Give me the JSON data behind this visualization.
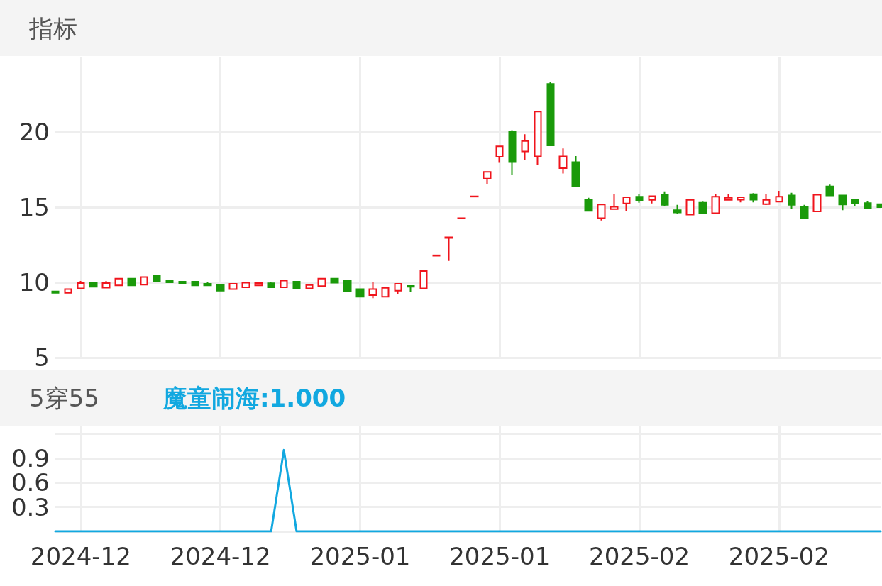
{
  "chart_data": [
    {
      "type": "candlestick",
      "title": "指标",
      "categories": [
        null,
        null,
        "2024-12",
        null,
        null,
        null,
        null,
        null,
        null,
        null,
        null,
        null,
        null,
        "2024-12",
        null,
        null,
        null,
        null,
        null,
        null,
        null,
        null,
        null,
        null,
        "2025-01",
        null,
        null,
        null,
        null,
        null,
        null,
        null,
        null,
        null,
        null,
        "2025-01",
        null,
        null,
        null,
        null,
        null,
        null,
        null,
        null,
        null,
        null,
        "2025-02",
        null,
        null,
        null,
        null,
        null,
        null,
        null,
        null,
        null,
        null,
        "2025-02",
        null,
        null,
        null,
        null,
        null,
        null,
        null,
        null
      ],
      "ohlc": [
        [
          9.4,
          9.45,
          9.3,
          9.3
        ],
        [
          9.3,
          9.55,
          9.3,
          9.55
        ],
        [
          9.6,
          10.1,
          9.6,
          9.95
        ],
        [
          9.95,
          9.97,
          9.7,
          9.7
        ],
        [
          9.65,
          10.1,
          9.65,
          9.95
        ],
        [
          9.8,
          10.3,
          9.75,
          10.25
        ],
        [
          10.25,
          10.3,
          9.75,
          9.8
        ],
        [
          9.85,
          10.4,
          9.85,
          10.35
        ],
        [
          10.45,
          10.45,
          10.05,
          10.05
        ],
        [
          10.1,
          10.12,
          9.95,
          10.0
        ],
        [
          10.05,
          10.05,
          9.92,
          9.95
        ],
        [
          10.05,
          10.05,
          9.8,
          9.8
        ],
        [
          9.9,
          10.0,
          9.78,
          9.8
        ],
        [
          9.85,
          9.85,
          9.42,
          9.45
        ],
        [
          9.55,
          9.9,
          9.5,
          9.9
        ],
        [
          9.67,
          10.02,
          9.67,
          9.98
        ],
        [
          9.8,
          10.0,
          9.78,
          9.95
        ],
        [
          9.94,
          10.03,
          9.67,
          9.67
        ],
        [
          9.67,
          10.12,
          9.65,
          10.12
        ],
        [
          10.05,
          10.05,
          9.6,
          9.6
        ],
        [
          9.6,
          9.9,
          9.6,
          9.82
        ],
        [
          9.75,
          10.3,
          9.72,
          10.25
        ],
        [
          10.25,
          10.27,
          9.97,
          9.98
        ],
        [
          10.1,
          10.12,
          9.4,
          9.4
        ],
        [
          9.55,
          9.56,
          9.0,
          9.05
        ],
        [
          9.15,
          10.05,
          8.95,
          9.55
        ],
        [
          9.05,
          9.68,
          9.05,
          9.64
        ],
        [
          9.45,
          9.9,
          9.22,
          9.9
        ],
        [
          9.77,
          9.78,
          9.37,
          9.7
        ],
        [
          9.6,
          10.77,
          9.6,
          10.75
        ],
        [
          11.77,
          11.8,
          11.77,
          11.8
        ],
        [
          12.95,
          12.99,
          11.43,
          12.99
        ],
        [
          14.25,
          14.27,
          14.25,
          14.27
        ],
        [
          15.7,
          15.72,
          15.7,
          15.72
        ],
        [
          16.9,
          17.36,
          16.55,
          17.35
        ],
        [
          18.35,
          19.07,
          17.95,
          19.05
        ],
        [
          20.0,
          20.12,
          17.13,
          18.0
        ],
        [
          18.7,
          19.85,
          18.13,
          19.4
        ],
        [
          18.37,
          21.36,
          17.8,
          21.36
        ],
        [
          23.2,
          23.35,
          19.1,
          19.1
        ],
        [
          17.6,
          18.9,
          17.24,
          18.37
        ],
        [
          18.0,
          18.4,
          16.42,
          16.42
        ],
        [
          15.5,
          15.63,
          14.75,
          14.75
        ],
        [
          14.27,
          15.2,
          14.12,
          15.18
        ],
        [
          14.87,
          15.86,
          14.87,
          15.02
        ],
        [
          15.25,
          15.68,
          14.72,
          15.66
        ],
        [
          15.7,
          15.9,
          15.29,
          15.44
        ],
        [
          15.48,
          15.73,
          15.25,
          15.73
        ],
        [
          15.85,
          16.05,
          15.05,
          15.15
        ],
        [
          14.8,
          15.15,
          14.57,
          14.65
        ],
        [
          14.5,
          15.48,
          14.5,
          15.48
        ],
        [
          15.29,
          15.37,
          14.6,
          14.6
        ],
        [
          14.6,
          15.9,
          14.6,
          15.7
        ],
        [
          15.48,
          15.88,
          15.48,
          15.63
        ],
        [
          15.5,
          15.66,
          15.32,
          15.66
        ],
        [
          15.86,
          15.93,
          15.32,
          15.5
        ],
        [
          15.2,
          15.88,
          15.14,
          15.48
        ],
        [
          15.37,
          16.08,
          15.37,
          15.7
        ],
        [
          15.78,
          15.96,
          14.87,
          15.15
        ],
        [
          15.02,
          15.15,
          14.27,
          14.27
        ],
        [
          14.72,
          15.82,
          14.72,
          15.82
        ],
        [
          16.38,
          16.5,
          15.78,
          15.78
        ],
        [
          15.78,
          15.8,
          14.8,
          15.18
        ],
        [
          15.52,
          15.52,
          15.1,
          15.25
        ],
        [
          15.27,
          15.43,
          14.95,
          14.95
        ],
        [
          15.2,
          15.2,
          15.0,
          15.0
        ]
      ],
      "colors": [
        "#1a9a0a",
        "#f0141c",
        "#f0141c",
        "#1a9a0a",
        "#f0141c",
        "#f0141c",
        "#1a9a0a",
        "#f0141c",
        "#1a9a0a",
        "#1a9a0a",
        "#1a9a0a",
        "#1a9a0a",
        "#1a9a0a",
        "#1a9a0a",
        "#f0141c",
        "#f0141c",
        "#f0141c",
        "#1a9a0a",
        "#f0141c",
        "#1a9a0a",
        "#f0141c",
        "#f0141c",
        "#1a9a0a",
        "#1a9a0a",
        "#1a9a0a",
        "#f0141c",
        "#f0141c",
        "#f0141c",
        "#1a9a0a",
        "#f0141c",
        "#f0141c",
        "#f0141c",
        "#f0141c",
        "#f0141c",
        "#f0141c",
        "#f0141c",
        "#1a9a0a",
        "#f0141c",
        "#f0141c",
        "#1a9a0a",
        "#f0141c",
        "#1a9a0a",
        "#1a9a0a",
        "#f0141c",
        "#f0141c",
        "#f0141c",
        "#1a9a0a",
        "#f0141c",
        "#1a9a0a",
        "#1a9a0a",
        "#f0141c",
        "#1a9a0a",
        "#f0141c",
        "#f0141c",
        "#f0141c",
        "#1a9a0a",
        "#f0141c",
        "#f0141c",
        "#1a9a0a",
        "#1a9a0a",
        "#f0141c",
        "#1a9a0a",
        "#1a9a0a",
        "#1a9a0a",
        "#1a9a0a",
        "#1a9a0a"
      ],
      "ylim": [
        5,
        25
      ],
      "yticks": [
        5,
        10,
        15,
        20
      ],
      "grid": true,
      "tick_labels": "y"
    },
    {
      "type": "line",
      "title": "5穿55",
      "categories": [
        null,
        null,
        "2024-12",
        null,
        null,
        null,
        null,
        null,
        null,
        null,
        null,
        null,
        null,
        "2024-12",
        null,
        null,
        null,
        null,
        null,
        null,
        null,
        null,
        null,
        null,
        "2025-01",
        null,
        null,
        null,
        null,
        null,
        null,
        null,
        null,
        null,
        null,
        "2025-01",
        null,
        null,
        null,
        null,
        null,
        null,
        null,
        null,
        null,
        null,
        "2025-02",
        null,
        null,
        null,
        null,
        null,
        null,
        null,
        null,
        null,
        null,
        "2025-02",
        null,
        null,
        null,
        null,
        null,
        null,
        null,
        null
      ],
      "series": [
        {
          "name": "魔童闹海:1.000",
          "color": "#12a8e0",
          "values": [
            0,
            0,
            0,
            0,
            0,
            0,
            0,
            0,
            0,
            0,
            0,
            0,
            0,
            0,
            0,
            0,
            0,
            0,
            1,
            0,
            0,
            0,
            0,
            0,
            0,
            0,
            0,
            0,
            0,
            0,
            0,
            0,
            0,
            0,
            0,
            0,
            0,
            0,
            0,
            0,
            0,
            0,
            0,
            0,
            0,
            0,
            0,
            0,
            0,
            0,
            0,
            0,
            0,
            0,
            0,
            0,
            0,
            0,
            0,
            0,
            0,
            0,
            0,
            0,
            0,
            0
          ]
        }
      ],
      "ylim": [
        0,
        1.3
      ],
      "yticks": [
        {
          "value": 0,
          "label": null
        },
        0.3,
        0.6,
        0.9,
        {
          "value": 1.2,
          "label": null
        }
      ],
      "grid": true,
      "legend": "top left",
      "marker": "none",
      "line_style": "solid"
    }
  ]
}
